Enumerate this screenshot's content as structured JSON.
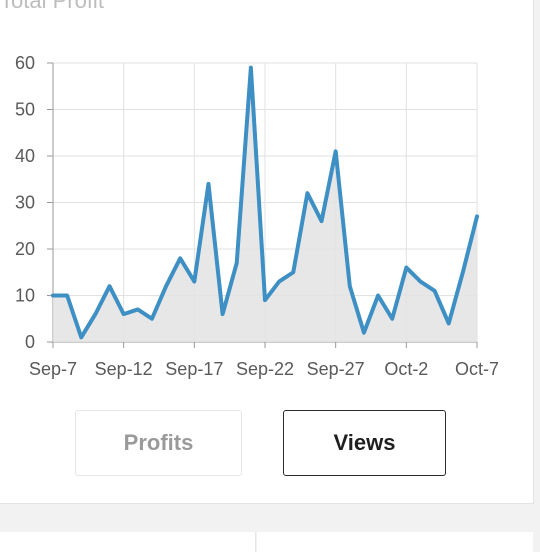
{
  "card": {
    "title": "Total Profit"
  },
  "chart_data": {
    "type": "area",
    "title": "",
    "xlabel": "",
    "ylabel": "",
    "x_tick_labels": [
      "Sep-7",
      "Sep-12",
      "Sep-17",
      "Sep-22",
      "Sep-27",
      "Oct-2",
      "Oct-7"
    ],
    "y_tick_labels": [
      "0",
      "10",
      "20",
      "30",
      "40",
      "50",
      "60"
    ],
    "ylim": [
      0,
      60
    ],
    "x_dates": [
      "Sep-7",
      "Sep-8",
      "Sep-9",
      "Sep-10",
      "Sep-11",
      "Sep-12",
      "Sep-13",
      "Sep-14",
      "Sep-15",
      "Sep-16",
      "Sep-17",
      "Sep-18",
      "Sep-19",
      "Sep-20",
      "Sep-21",
      "Sep-22",
      "Sep-23",
      "Sep-24",
      "Sep-25",
      "Sep-26",
      "Sep-27",
      "Sep-28",
      "Sep-29",
      "Sep-30",
      "Oct-1",
      "Oct-2",
      "Oct-3",
      "Oct-4",
      "Oct-5",
      "Oct-6",
      "Oct-7"
    ],
    "values": [
      10,
      10,
      1,
      6,
      12,
      6,
      7,
      5,
      12,
      18,
      13,
      34,
      6,
      17,
      59,
      9,
      13,
      15,
      32,
      26,
      41,
      12,
      2,
      10,
      5,
      16,
      13,
      11,
      4,
      15,
      27
    ],
    "grid": true,
    "line_color": "#3d8fc4",
    "fill_color": "#e3e3e3",
    "grid_color": "#e2e2e2"
  },
  "toggle": {
    "profits_label": "Profits",
    "views_label": "Views",
    "selected": "Views"
  }
}
